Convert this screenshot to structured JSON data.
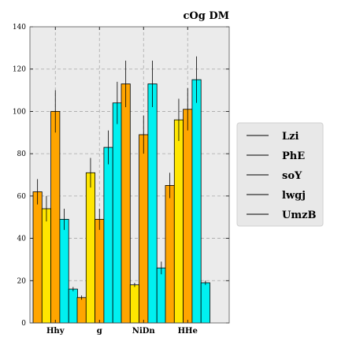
{
  "chart_data": {
    "type": "bar",
    "title": "cOg DM",
    "xlabel": "",
    "ylabel": "",
    "categories": [
      "Hhy",
      "g",
      "NiDn",
      "HHe"
    ],
    "ylim": [
      0,
      140
    ],
    "yticks": [
      0,
      20,
      40,
      60,
      80,
      100,
      120,
      140
    ],
    "grid": true,
    "legend_position": "right",
    "series": [
      {
        "name": "Lzi",
        "color": "#FFA500",
        "values": [
          62,
          12,
          113,
          65
        ],
        "errors": [
          6,
          1,
          11,
          6
        ]
      },
      {
        "name": "PhE",
        "color": "#FFE600",
        "values": [
          54,
          71,
          18,
          96
        ],
        "errors": [
          6,
          7,
          1,
          10
        ]
      },
      {
        "name": "soY",
        "color": "#FFA500",
        "values": [
          100,
          49,
          89,
          101
        ],
        "errors": [
          10,
          5,
          9,
          10
        ]
      },
      {
        "name": "lwgj",
        "color": "#00F0F0",
        "values": [
          49,
          83,
          113,
          115
        ],
        "errors": [
          5,
          8,
          11,
          11
        ]
      },
      {
        "name": "UmzB",
        "color": "#00F0F0",
        "values": [
          16,
          104,
          26,
          19
        ],
        "errors": [
          1,
          10,
          3,
          1
        ]
      }
    ]
  }
}
